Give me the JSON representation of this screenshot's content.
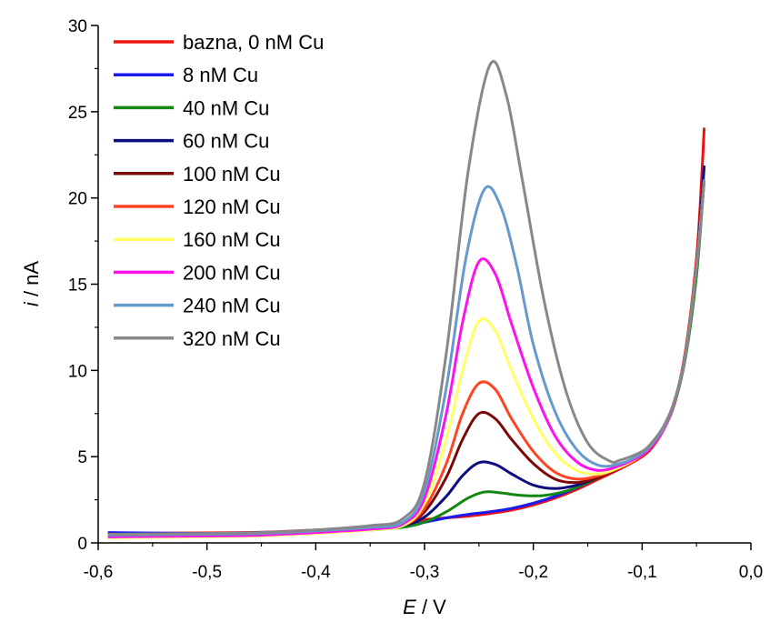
{
  "chart_data": {
    "type": "line",
    "xlabel": {
      "italic": "E",
      "rest": " / V"
    },
    "ylabel": {
      "italic": "i",
      "rest": " / nA"
    },
    "xlim": [
      -0.6,
      0.0
    ],
    "ylim": [
      0,
      30
    ],
    "xticks": [
      "-0,6",
      "-0,5",
      "-0,4",
      "-0,3",
      "-0,2",
      "-0,1",
      "0,0"
    ],
    "yticks": [
      "0",
      "5",
      "10",
      "15",
      "20",
      "25",
      "30"
    ],
    "grid": false,
    "legend_position": "top-left",
    "series": [
      {
        "name": "bazna, 0 nM Cu",
        "color": "#ee1111",
        "points": [
          [
            -0.59,
            0.55
          ],
          [
            -0.5,
            0.58
          ],
          [
            -0.45,
            0.62
          ],
          [
            -0.4,
            0.75
          ],
          [
            -0.35,
            0.92
          ],
          [
            -0.32,
            1.15
          ],
          [
            -0.3,
            1.35
          ],
          [
            -0.28,
            1.45
          ],
          [
            -0.26,
            1.55
          ],
          [
            -0.24,
            1.7
          ],
          [
            -0.22,
            1.9
          ],
          [
            -0.2,
            2.2
          ],
          [
            -0.18,
            2.6
          ],
          [
            -0.16,
            3.1
          ],
          [
            -0.14,
            3.7
          ],
          [
            -0.12,
            4.3
          ],
          [
            -0.1,
            5.0
          ],
          [
            -0.09,
            5.6
          ],
          [
            -0.08,
            6.6
          ],
          [
            -0.07,
            8.2
          ],
          [
            -0.06,
            11.2
          ],
          [
            -0.05,
            16.5
          ],
          [
            -0.045,
            21.5
          ],
          [
            -0.043,
            24.0
          ]
        ]
      },
      {
        "name": "8 nM Cu",
        "color": "#1a1aee",
        "points": [
          [
            -0.59,
            0.6
          ],
          [
            -0.5,
            0.55
          ],
          [
            -0.45,
            0.6
          ],
          [
            -0.4,
            0.7
          ],
          [
            -0.35,
            0.85
          ],
          [
            -0.32,
            1.0
          ],
          [
            -0.3,
            1.2
          ],
          [
            -0.28,
            1.45
          ],
          [
            -0.26,
            1.65
          ],
          [
            -0.24,
            1.8
          ],
          [
            -0.22,
            2.0
          ],
          [
            -0.2,
            2.3
          ],
          [
            -0.18,
            2.7
          ],
          [
            -0.16,
            3.2
          ],
          [
            -0.14,
            3.8
          ],
          [
            -0.12,
            4.4
          ],
          [
            -0.1,
            5.1
          ],
          [
            -0.09,
            5.7
          ],
          [
            -0.08,
            6.7
          ],
          [
            -0.07,
            8.2
          ],
          [
            -0.06,
            11.0
          ],
          [
            -0.05,
            16.0
          ],
          [
            -0.043,
            21.8
          ]
        ]
      },
      {
        "name": "40 nM Cu",
        "color": "#118811",
        "points": [
          [
            -0.59,
            0.3
          ],
          [
            -0.5,
            0.4
          ],
          [
            -0.45,
            0.45
          ],
          [
            -0.4,
            0.6
          ],
          [
            -0.35,
            0.75
          ],
          [
            -0.32,
            0.9
          ],
          [
            -0.3,
            1.2
          ],
          [
            -0.28,
            1.8
          ],
          [
            -0.26,
            2.6
          ],
          [
            -0.245,
            2.95
          ],
          [
            -0.23,
            2.9
          ],
          [
            -0.21,
            2.75
          ],
          [
            -0.19,
            2.75
          ],
          [
            -0.17,
            3.0
          ],
          [
            -0.15,
            3.5
          ],
          [
            -0.13,
            4.1
          ],
          [
            -0.11,
            4.8
          ],
          [
            -0.1,
            5.1
          ],
          [
            -0.09,
            5.7
          ],
          [
            -0.08,
            6.6
          ],
          [
            -0.07,
            8.1
          ],
          [
            -0.06,
            10.8
          ],
          [
            -0.05,
            15.5
          ],
          [
            -0.043,
            21.0
          ]
        ]
      },
      {
        "name": "60 nM Cu",
        "color": "#0d0d80",
        "points": [
          [
            -0.59,
            0.45
          ],
          [
            -0.5,
            0.5
          ],
          [
            -0.45,
            0.55
          ],
          [
            -0.4,
            0.7
          ],
          [
            -0.35,
            0.85
          ],
          [
            -0.32,
            1.0
          ],
          [
            -0.3,
            1.5
          ],
          [
            -0.28,
            2.7
          ],
          [
            -0.265,
            3.9
          ],
          [
            -0.25,
            4.65
          ],
          [
            -0.235,
            4.55
          ],
          [
            -0.22,
            4.0
          ],
          [
            -0.2,
            3.35
          ],
          [
            -0.18,
            3.15
          ],
          [
            -0.16,
            3.35
          ],
          [
            -0.14,
            3.8
          ],
          [
            -0.12,
            4.4
          ],
          [
            -0.1,
            5.1
          ],
          [
            -0.09,
            5.7
          ],
          [
            -0.08,
            6.6
          ],
          [
            -0.07,
            8.2
          ],
          [
            -0.06,
            11.0
          ],
          [
            -0.05,
            16.0
          ],
          [
            -0.043,
            21.8
          ]
        ]
      },
      {
        "name": "100 nM Cu",
        "color": "#7a0a0a",
        "points": [
          [
            -0.59,
            0.4
          ],
          [
            -0.5,
            0.45
          ],
          [
            -0.45,
            0.5
          ],
          [
            -0.4,
            0.65
          ],
          [
            -0.35,
            0.8
          ],
          [
            -0.32,
            1.0
          ],
          [
            -0.3,
            1.8
          ],
          [
            -0.28,
            3.8
          ],
          [
            -0.265,
            6.0
          ],
          [
            -0.25,
            7.5
          ],
          [
            -0.235,
            7.2
          ],
          [
            -0.22,
            6.0
          ],
          [
            -0.2,
            4.6
          ],
          [
            -0.18,
            3.7
          ],
          [
            -0.16,
            3.5
          ],
          [
            -0.14,
            3.8
          ],
          [
            -0.12,
            4.4
          ],
          [
            -0.1,
            5.1
          ],
          [
            -0.09,
            5.7
          ],
          [
            -0.08,
            6.6
          ],
          [
            -0.07,
            8.2
          ],
          [
            -0.06,
            11.0
          ],
          [
            -0.05,
            16.0
          ],
          [
            -0.043,
            21.0
          ]
        ]
      },
      {
        "name": "120 nM Cu",
        "color": "#ff4422",
        "points": [
          [
            -0.59,
            0.35
          ],
          [
            -0.5,
            0.4
          ],
          [
            -0.45,
            0.45
          ],
          [
            -0.4,
            0.6
          ],
          [
            -0.35,
            0.78
          ],
          [
            -0.32,
            1.0
          ],
          [
            -0.3,
            2.0
          ],
          [
            -0.28,
            4.6
          ],
          [
            -0.265,
            7.5
          ],
          [
            -0.25,
            9.25
          ],
          [
            -0.235,
            8.9
          ],
          [
            -0.22,
            7.2
          ],
          [
            -0.2,
            5.3
          ],
          [
            -0.18,
            4.1
          ],
          [
            -0.16,
            3.7
          ],
          [
            -0.14,
            3.9
          ],
          [
            -0.12,
            4.4
          ],
          [
            -0.1,
            5.1
          ],
          [
            -0.09,
            5.7
          ],
          [
            -0.08,
            6.6
          ],
          [
            -0.07,
            8.2
          ],
          [
            -0.06,
            11.0
          ],
          [
            -0.05,
            16.0
          ],
          [
            -0.043,
            21.0
          ]
        ]
      },
      {
        "name": "160 nM Cu",
        "color": "#ffff66",
        "points": [
          [
            -0.59,
            0.3
          ],
          [
            -0.5,
            0.35
          ],
          [
            -0.45,
            0.4
          ],
          [
            -0.4,
            0.55
          ],
          [
            -0.35,
            0.75
          ],
          [
            -0.32,
            1.0
          ],
          [
            -0.3,
            2.3
          ],
          [
            -0.28,
            6.0
          ],
          [
            -0.265,
            10.0
          ],
          [
            -0.25,
            12.85
          ],
          [
            -0.235,
            12.3
          ],
          [
            -0.22,
            10.0
          ],
          [
            -0.2,
            7.2
          ],
          [
            -0.18,
            5.2
          ],
          [
            -0.16,
            4.2
          ],
          [
            -0.14,
            4.0
          ],
          [
            -0.12,
            4.4
          ],
          [
            -0.1,
            5.1
          ],
          [
            -0.09,
            5.7
          ],
          [
            -0.08,
            6.6
          ],
          [
            -0.07,
            8.2
          ],
          [
            -0.06,
            11.0
          ],
          [
            -0.05,
            16.0
          ],
          [
            -0.043,
            21.0
          ]
        ]
      },
      {
        "name": "200 nM Cu",
        "color": "#ff11ee",
        "points": [
          [
            -0.59,
            0.35
          ],
          [
            -0.5,
            0.4
          ],
          [
            -0.45,
            0.45
          ],
          [
            -0.4,
            0.6
          ],
          [
            -0.35,
            0.8
          ],
          [
            -0.32,
            1.1
          ],
          [
            -0.3,
            2.6
          ],
          [
            -0.28,
            7.5
          ],
          [
            -0.265,
            12.8
          ],
          [
            -0.25,
            16.3
          ],
          [
            -0.235,
            15.6
          ],
          [
            -0.22,
            12.7
          ],
          [
            -0.2,
            9.0
          ],
          [
            -0.18,
            6.2
          ],
          [
            -0.16,
            4.7
          ],
          [
            -0.14,
            4.2
          ],
          [
            -0.12,
            4.5
          ],
          [
            -0.1,
            5.1
          ],
          [
            -0.09,
            5.7
          ],
          [
            -0.08,
            6.6
          ],
          [
            -0.07,
            8.2
          ],
          [
            -0.06,
            11.0
          ],
          [
            -0.05,
            16.0
          ],
          [
            -0.043,
            21.0
          ]
        ]
      },
      {
        "name": "240 nM Cu",
        "color": "#6699cc",
        "points": [
          [
            -0.59,
            0.45
          ],
          [
            -0.5,
            0.5
          ],
          [
            -0.45,
            0.55
          ],
          [
            -0.4,
            0.7
          ],
          [
            -0.35,
            0.9
          ],
          [
            -0.32,
            1.2
          ],
          [
            -0.3,
            3.0
          ],
          [
            -0.28,
            9.0
          ],
          [
            -0.262,
            16.5
          ],
          [
            -0.245,
            20.5
          ],
          [
            -0.23,
            19.5
          ],
          [
            -0.215,
            16.0
          ],
          [
            -0.2,
            11.5
          ],
          [
            -0.18,
            7.6
          ],
          [
            -0.16,
            5.4
          ],
          [
            -0.14,
            4.5
          ],
          [
            -0.12,
            4.6
          ],
          [
            -0.1,
            5.2
          ],
          [
            -0.09,
            5.8
          ],
          [
            -0.08,
            6.7
          ],
          [
            -0.07,
            8.3
          ],
          [
            -0.06,
            11.0
          ],
          [
            -0.05,
            16.0
          ],
          [
            -0.043,
            21.0
          ]
        ]
      },
      {
        "name": "320 nM Cu",
        "color": "#888888",
        "points": [
          [
            -0.59,
            0.5
          ],
          [
            -0.5,
            0.55
          ],
          [
            -0.45,
            0.6
          ],
          [
            -0.4,
            0.75
          ],
          [
            -0.35,
            1.0
          ],
          [
            -0.32,
            1.4
          ],
          [
            -0.3,
            3.5
          ],
          [
            -0.28,
            11.0
          ],
          [
            -0.26,
            21.5
          ],
          [
            -0.24,
            27.7
          ],
          [
            -0.225,
            26.0
          ],
          [
            -0.21,
            21.0
          ],
          [
            -0.19,
            14.0
          ],
          [
            -0.17,
            8.8
          ],
          [
            -0.15,
            5.8
          ],
          [
            -0.13,
            4.75
          ],
          [
            -0.12,
            4.8
          ],
          [
            -0.1,
            5.3
          ],
          [
            -0.09,
            5.9
          ],
          [
            -0.08,
            6.8
          ],
          [
            -0.07,
            8.3
          ],
          [
            -0.06,
            11.0
          ],
          [
            -0.05,
            16.0
          ],
          [
            -0.043,
            21.0
          ]
        ]
      }
    ]
  }
}
